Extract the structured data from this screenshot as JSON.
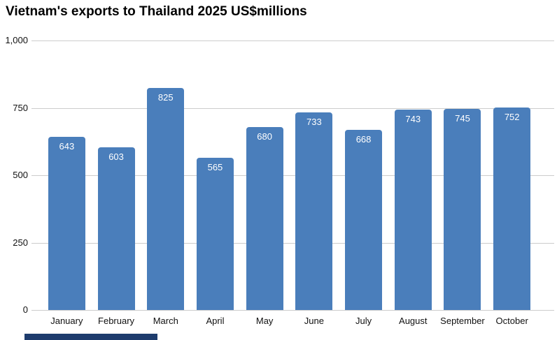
{
  "title": "Vietnam's exports to Thailand 2025 US$millions",
  "colors": {
    "bar": "#4a7ebb",
    "grid": "#cccccc",
    "axis_text": "#111111",
    "value_label": "#ffffff",
    "bottom_partial_bar": "#1e3c6d"
  },
  "chart_data": {
    "type": "bar",
    "title": "Vietnam's exports to Thailand 2025 US$millions",
    "categories": [
      "January",
      "February",
      "March",
      "April",
      "May",
      "June",
      "July",
      "August",
      "September",
      "October"
    ],
    "values": [
      643,
      603,
      825,
      565,
      680,
      733,
      668,
      743,
      745,
      752
    ],
    "xlabel": "",
    "ylabel": "",
    "ylim": [
      0,
      1000
    ],
    "yticks": [
      0,
      250,
      500,
      750,
      1000
    ],
    "ytick_labels": [
      "0",
      "250",
      "500",
      "750",
      "1,000"
    ],
    "grid": true,
    "legend": false,
    "bar_color": "#4a7ebb",
    "value_labels_inside_bars": true
  }
}
